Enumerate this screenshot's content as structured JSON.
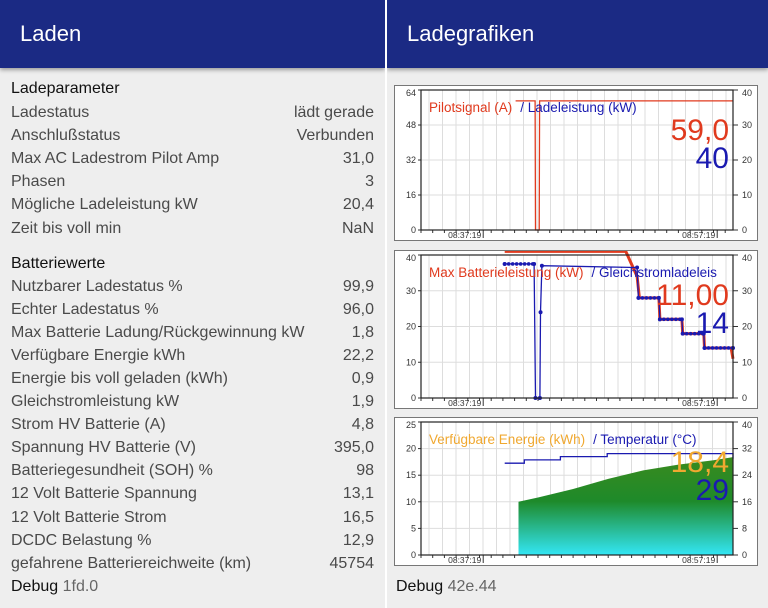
{
  "left": {
    "title": "Laden",
    "section1": "Ladeparameter",
    "params": [
      {
        "label": "Ladestatus",
        "value": "lädt gerade"
      },
      {
        "label": "Anschlußstatus",
        "value": "Verbunden"
      },
      {
        "label": "Max AC Ladestrom Pilot Amp",
        "value": "31,0"
      },
      {
        "label": "Phasen",
        "value": "3"
      },
      {
        "label": "Mögliche Ladeleistung kW",
        "value": "20,4"
      },
      {
        "label": "Zeit bis voll min",
        "value": "NaN"
      }
    ],
    "section2": "Batteriewerte",
    "battery": [
      {
        "label": "Nutzbarer Ladestatus %",
        "value": "99,9"
      },
      {
        "label": "Echter Ladestatus %",
        "value": "96,0"
      },
      {
        "label": "Max Batterie Ladung/Rückgewinnung kW",
        "value": "1,8"
      },
      {
        "label": "Verfügbare Energie kWh",
        "value": "22,2"
      },
      {
        "label": "Energie bis voll geladen (kWh)",
        "value": "0,9"
      },
      {
        "label": "Gleichstromleistung kW",
        "value": "1,9"
      },
      {
        "label": "Strom HV Batterie (A)",
        "value": "4,8"
      },
      {
        "label": "Spannung HV Batterie (V)",
        "value": "395,0"
      },
      {
        "label": "Batteriegesundheit (SOH) %",
        "value": "98"
      },
      {
        "label": "12 Volt Batterie Spannung",
        "value": "13,1"
      },
      {
        "label": "12 Volt Batterie Strom",
        "value": "16,5"
      },
      {
        "label": "DCDC Belastung %",
        "value": "12,9"
      },
      {
        "label": "gefahrene Batteriereichweite (km)",
        "value": "45754"
      }
    ],
    "debug_label": "Debug",
    "debug_value": "1fd.0"
  },
  "right": {
    "title": "Ladegrafiken",
    "debug_label": "Debug",
    "debug_value": "42e.44"
  },
  "colors": {
    "header": "#1b2a84",
    "red": "#e03a1e",
    "blue": "#1a1ab0",
    "orange": "#f0a830",
    "green": "#1e8a2a",
    "cyan": "#33e0f0"
  },
  "chart_data": [
    {
      "type": "line",
      "legend": [
        "Pilotsignal (A)",
        "/ Ladeleistung (kW)"
      ],
      "current_values": [
        "59,0",
        "40"
      ],
      "xlim": [
        "08:32:00",
        "08:58:40"
      ],
      "xticks": [
        "08:37:19",
        "08:57:19"
      ],
      "y_left": {
        "lim": [
          0,
          64
        ],
        "ticks": [
          0,
          16,
          32,
          48,
          64
        ]
      },
      "y_right": {
        "lim": [
          0,
          40
        ],
        "ticks": [
          0,
          10,
          20,
          30,
          40
        ]
      },
      "series": [
        {
          "name": "Pilotsignal (A)",
          "axis": "left",
          "color": "#e03a1e",
          "style": "line",
          "points": [
            [
              "08:40:05",
              59
            ],
            [
              "08:41:45",
              59
            ],
            [
              "08:41:47",
              0
            ],
            [
              "08:42:06",
              0
            ],
            [
              "08:42:08",
              59
            ],
            [
              "08:58:40",
              59
            ]
          ]
        }
      ]
    },
    {
      "type": "line",
      "legend": [
        "Max Batterieleistung (kW)",
        "/ Gleichstromladeleis"
      ],
      "current_values": [
        "11,00",
        "14"
      ],
      "xlim": [
        "08:32:00",
        "08:58:40"
      ],
      "xticks": [
        "08:37:19",
        "08:57:19"
      ],
      "y_left": {
        "lim": [
          0,
          40
        ],
        "ticks": [
          0,
          10,
          20,
          30,
          40
        ]
      },
      "y_right": {
        "lim": [
          0,
          40
        ],
        "ticks": [
          0,
          10,
          20,
          30,
          40
        ]
      },
      "series": [
        {
          "name": "Max Batterieleistung (kW)",
          "axis": "left",
          "color": "#e03a1e",
          "style": "line",
          "points": [
            [
              "08:39:09",
              41
            ],
            [
              "08:49:30",
              41
            ],
            [
              "08:50:28",
              34
            ],
            [
              "08:50:40",
              28
            ],
            [
              "08:52:20",
              28
            ],
            [
              "08:52:25",
              22
            ],
            [
              "08:54:18",
              22
            ],
            [
              "08:54:22",
              18
            ],
            [
              "08:56:10",
              18
            ],
            [
              "08:56:14",
              14
            ],
            [
              "08:58:30",
              14
            ],
            [
              "08:58:40",
              11
            ]
          ]
        },
        {
          "name": "Gleichstromladeleistung",
          "axis": "right",
          "color": "#1a1ab0",
          "style": "markers",
          "points": [
            [
              "08:39:09",
              37.5
            ],
            [
              "08:41:40",
              37.5
            ],
            [
              "08:41:47",
              0
            ],
            [
              "08:42:10",
              0
            ],
            [
              "08:42:13",
              24
            ],
            [
              "08:42:20",
              37
            ],
            [
              "08:50:28",
              36.5
            ],
            [
              "08:50:35",
              28
            ],
            [
              "08:52:20",
              28
            ],
            [
              "08:52:25",
              22
            ],
            [
              "08:54:18",
              22
            ],
            [
              "08:54:22",
              18
            ],
            [
              "08:56:10",
              18
            ],
            [
              "08:56:14",
              14
            ],
            [
              "08:58:40",
              14
            ]
          ]
        }
      ]
    },
    {
      "type": "area",
      "legend": [
        "Verfügbare Energie (kWh)",
        "/ Temperatur (°C)"
      ],
      "current_values": [
        "18,4",
        "29"
      ],
      "xlim": [
        "08:32:00",
        "08:58:40"
      ],
      "xticks": [
        "08:37:19",
        "08:57:19"
      ],
      "y_left": {
        "lim": [
          0,
          25
        ],
        "ticks": [
          0,
          5,
          10,
          15,
          20,
          25
        ]
      },
      "y_right": {
        "lim": [
          0,
          40
        ],
        "ticks": [
          0,
          8,
          16,
          24,
          32,
          40
        ]
      },
      "series": [
        {
          "name": "Verfügbare Energie (kWh)",
          "axis": "left",
          "color": "#1e8a2a",
          "style": "area",
          "points": [
            [
              "08:40:20",
              10
            ],
            [
              "08:42:00",
              10.8
            ],
            [
              "08:45:00",
              12.4
            ],
            [
              "08:48:00",
              14.3
            ],
            [
              "08:51:00",
              15.9
            ],
            [
              "08:54:00",
              17
            ],
            [
              "08:57:00",
              17.8
            ],
            [
              "08:58:40",
              18.4
            ]
          ]
        },
        {
          "name": "Temperatur (°C)",
          "axis": "right",
          "color": "#1a1ab0",
          "style": "step",
          "points": [
            [
              "08:39:09",
              27.6
            ],
            [
              "08:40:50",
              28.6
            ],
            [
              "08:43:55",
              29.6
            ],
            [
              "08:47:55",
              30.5
            ],
            [
              "08:55:40",
              30.5
            ],
            [
              "08:58:40",
              29
            ]
          ]
        }
      ]
    }
  ]
}
